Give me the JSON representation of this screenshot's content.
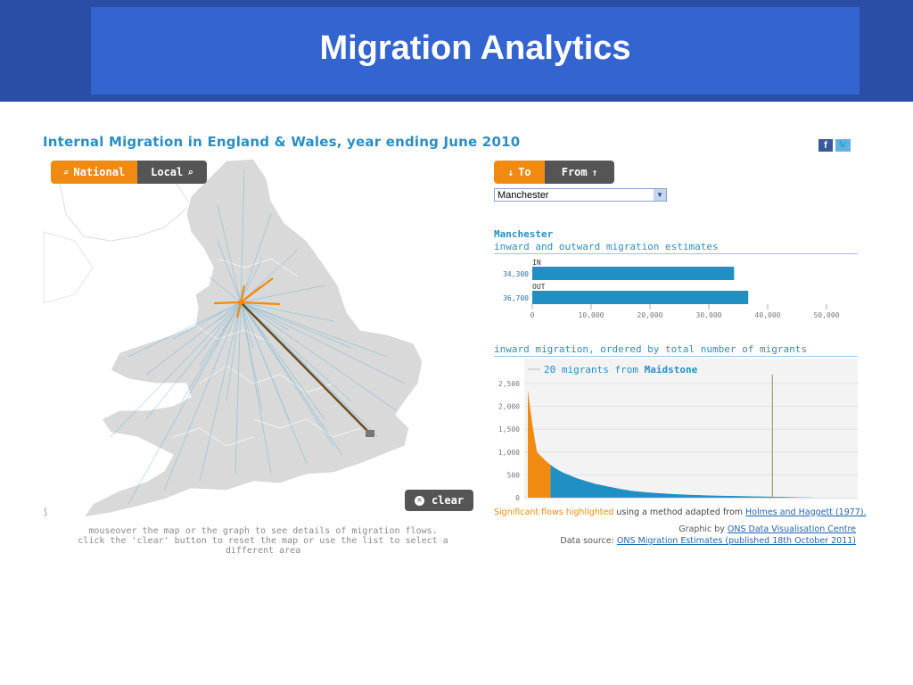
{
  "slide": {
    "title": "Migration Analytics"
  },
  "widget": {
    "title": "Internal Migration in England & Wales, year ending June 2010",
    "social": {
      "facebook": "f",
      "twitter": "t"
    },
    "scope_toggle": {
      "national": "National",
      "local": "Local",
      "active": "National"
    },
    "direction_toggle": {
      "to": "To",
      "from": "From",
      "active": "To"
    },
    "area_select": {
      "value": "Manchester"
    },
    "clear_label": "clear",
    "help_text": {
      "line1": "mouseover the map or the graph to see details of migration flows.",
      "line2": "click the 'clear' button to reset the map or use the list to select a different area"
    },
    "area_name": "Manchester",
    "area_subtitle": "inward and outward migration estimates",
    "inward_heading": "inward migration, ordered by total number of migrants",
    "dist_annotation": {
      "count": "20",
      "mid": "migrants from",
      "place": "Maidstone"
    },
    "significant": {
      "highlight": "Significant flows highlighted",
      "rest": " using a method adapted from ",
      "link": "Holmes and Haggett (1977)."
    },
    "credits": {
      "graphic_prefix": "Graphic by ",
      "graphic_link": "ONS Data Visualisation Centre",
      "source_prefix": "Data source: ",
      "source_link": "ONS Migration Estimates (published 18th October 2011)"
    },
    "colors": {
      "orange": "#f08a10",
      "blue": "#2a8fc0",
      "bar_blue": "#1f8fc4",
      "dark": "#555555",
      "flow_line": "#6b4a1a"
    }
  },
  "chart_data": [
    {
      "type": "bar",
      "orientation": "horizontal",
      "categories": [
        "IN",
        "OUT"
      ],
      "values": [
        34300,
        36700
      ],
      "value_labels": [
        "34,300",
        "36,700"
      ],
      "xlim": [
        0,
        50000
      ],
      "ticks": [
        "0",
        "10,000",
        "20,000",
        "30,000",
        "40,000",
        "50,000"
      ]
    },
    {
      "type": "area",
      "description_series": "inward migration by origin area",
      "ylim": [
        0,
        2500
      ],
      "yticks": [
        "0",
        "500",
        "1,000",
        "1,500",
        "2,000",
        "2,500"
      ],
      "values": [
        2350,
        1600,
        1000,
        900,
        800,
        720,
        650,
        590,
        540,
        500,
        460,
        420,
        390,
        360,
        330,
        300,
        280,
        260,
        240,
        220,
        200,
        180,
        165,
        150,
        140,
        130,
        120,
        112,
        105,
        98,
        92,
        86,
        80,
        75,
        70,
        66,
        62,
        58,
        55,
        52,
        49,
        46,
        44,
        42,
        40,
        38,
        36,
        34,
        32,
        30,
        28,
        26,
        24,
        22,
        20,
        18,
        16,
        14,
        12,
        10,
        8,
        6,
        4,
        2
      ],
      "highlighted_count": 6,
      "marker_label": "Maidstone",
      "marker_value": 20
    }
  ]
}
